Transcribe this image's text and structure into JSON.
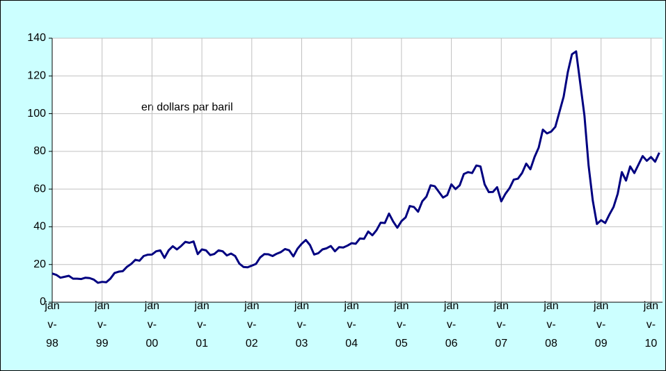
{
  "chart_data": {
    "type": "line",
    "annotation": "en dollars par baril",
    "categories": [
      "janv-98",
      null,
      null,
      null,
      null,
      null,
      null,
      null,
      null,
      null,
      null,
      null,
      "janv-99",
      null,
      null,
      null,
      null,
      null,
      null,
      null,
      null,
      null,
      null,
      null,
      "janv-00",
      null,
      null,
      null,
      null,
      null,
      null,
      null,
      null,
      null,
      null,
      null,
      "janv-01",
      null,
      null,
      null,
      null,
      null,
      null,
      null,
      null,
      null,
      null,
      null,
      "janv-02",
      null,
      null,
      null,
      null,
      null,
      null,
      null,
      null,
      null,
      null,
      null,
      "janv-03",
      null,
      null,
      null,
      null,
      null,
      null,
      null,
      null,
      null,
      null,
      null,
      "janv-04",
      null,
      null,
      null,
      null,
      null,
      null,
      null,
      null,
      null,
      null,
      null,
      "janv-05",
      null,
      null,
      null,
      null,
      null,
      null,
      null,
      null,
      null,
      null,
      null,
      "janv-06",
      null,
      null,
      null,
      null,
      null,
      null,
      null,
      null,
      null,
      null,
      null,
      "janv-07",
      null,
      null,
      null,
      null,
      null,
      null,
      null,
      null,
      null,
      null,
      null,
      "janv-08",
      null,
      null,
      null,
      null,
      null,
      null,
      null,
      null,
      null,
      null,
      null,
      "janv-09",
      null,
      null,
      null,
      null,
      null,
      null,
      null,
      null,
      null,
      null,
      null,
      "janv-10",
      null,
      null
    ],
    "values": [
      15.2,
      14.5,
      13,
      13.5,
      14,
      12.5,
      12.5,
      12.3,
      13,
      12.8,
      12,
      10.3,
      10.8,
      10.6,
      12.5,
      15.5,
      16.2,
      16.5,
      18.8,
      20.3,
      22.5,
      22,
      24.5,
      25.2,
      25.3,
      27,
      27.5,
      23.5,
      27.5,
      29.7,
      28,
      29.8,
      32,
      31.5,
      32.2,
      25.5,
      28,
      27.5,
      25,
      25.6,
      27.5,
      27,
      24.8,
      25.8,
      24.5,
      20.5,
      18.7,
      18.5,
      19.4,
      20.3,
      23.7,
      25.5,
      25.4,
      24.5,
      25.7,
      26.6,
      28.2,
      27.5,
      24.3,
      28.4,
      31,
      33,
      30.3,
      25.3,
      26,
      28,
      28.6,
      29.8,
      27,
      29.2,
      29,
      30,
      31.3,
      31,
      33.8,
      33.6,
      37.5,
      35.5,
      38.2,
      42.2,
      42,
      47,
      42.8,
      39.5,
      43,
      45,
      51,
      50.5,
      48,
      53.5,
      56,
      62,
      61.5,
      58.5,
      55.5,
      56.8,
      62.5,
      60,
      62,
      68,
      69,
      68.5,
      72.5,
      72,
      62.5,
      58.4,
      58.5,
      61,
      53.5,
      57.5,
      60.5,
      65,
      65.5,
      68.5,
      73.5,
      70.5,
      77,
      82,
      91.5,
      89.5,
      90.5,
      93,
      101,
      109,
      122,
      131.5,
      133,
      116,
      99,
      72.5,
      54,
      41.5,
      43.5,
      42,
      46.5,
      50.5,
      57.5,
      69,
      64.5,
      72,
      68.5,
      73,
      77.5,
      75,
      77,
      74.5,
      79.3
    ],
    "color": "#000080",
    "ylim": [
      0,
      140
    ],
    "yticks": [
      0,
      20,
      40,
      60,
      80,
      100,
      120,
      140
    ],
    "grid": true
  }
}
